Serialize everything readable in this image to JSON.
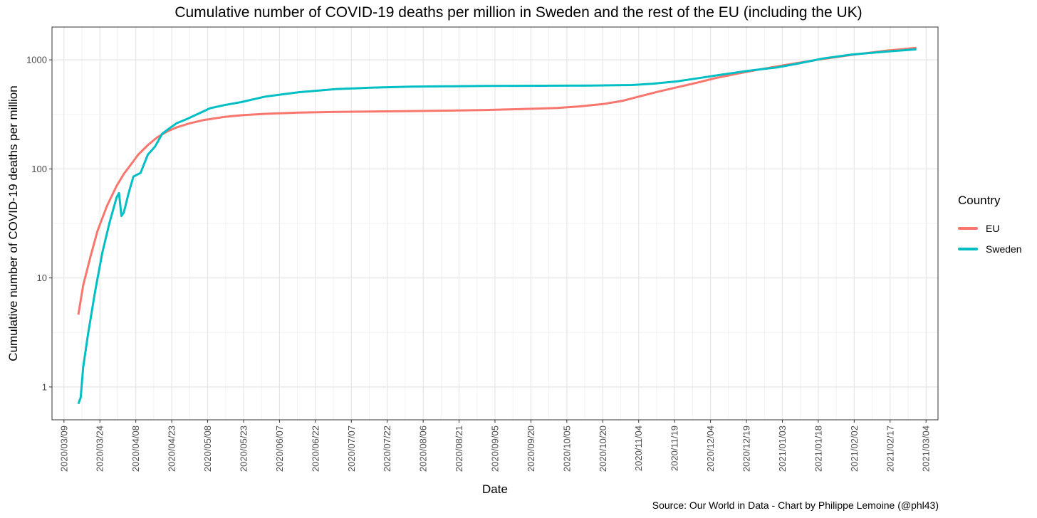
{
  "chart_data": {
    "type": "line",
    "title": "Cumulative number of COVID-19 deaths per million in Sweden and the rest of the EU (including the UK)",
    "xlabel": "Date",
    "ylabel": "Cumulative number of COVID-19 deaths per million",
    "source": "Source: Our World in Data - Chart by Philippe Lemoine (@phl43)",
    "legend_title": "Country",
    "legend_position": "right",
    "grid": true,
    "y_scale": "log10",
    "ylim": [
      0.5,
      2000
    ],
    "xlim": [
      "2020-03-04",
      "2021-03-09"
    ],
    "y_ticks": [
      1,
      10,
      100,
      1000
    ],
    "y_tick_labels": [
      "1",
      "10",
      "100",
      "1000"
    ],
    "x_ticks": [
      "2020-03-09",
      "2020-03-24",
      "2020-04-08",
      "2020-04-23",
      "2020-05-08",
      "2020-05-23",
      "2020-06-07",
      "2020-06-22",
      "2020-07-07",
      "2020-07-22",
      "2020-08-06",
      "2020-08-21",
      "2020-09-05",
      "2020-09-20",
      "2020-10-05",
      "2020-10-20",
      "2020-11-04",
      "2020-11-19",
      "2020-12-04",
      "2020-12-19",
      "2021-01-03",
      "2021-01-18",
      "2021-02-02",
      "2021-02-17",
      "2021-03-04"
    ],
    "x_tick_labels": [
      "2020/03/09",
      "2020/03/24",
      "2020/04/08",
      "2020/04/23",
      "2020/05/08",
      "2020/05/23",
      "2020/06/07",
      "2020/06/22",
      "2020/07/07",
      "2020/07/22",
      "2020/08/06",
      "2020/08/21",
      "2020/09/05",
      "2020/09/20",
      "2020/10/05",
      "2020/10/20",
      "2020/11/04",
      "2020/11/19",
      "2020/12/04",
      "2020/12/19",
      "2021/01/03",
      "2021/01/18",
      "2021/02/02",
      "2021/02/17",
      "2021/03/04"
    ],
    "series": [
      {
        "name": "EU",
        "color": "#F8766D",
        "x": [
          "2020-03-15",
          "2020-03-17",
          "2020-03-20",
          "2020-03-23",
          "2020-03-27",
          "2020-03-31",
          "2020-04-03",
          "2020-04-06",
          "2020-04-09",
          "2020-04-13",
          "2020-04-17",
          "2020-04-21",
          "2020-04-25",
          "2020-04-30",
          "2020-05-06",
          "2020-05-15",
          "2020-05-23",
          "2020-06-01",
          "2020-06-15",
          "2020-07-01",
          "2020-07-15",
          "2020-08-01",
          "2020-08-15",
          "2020-09-01",
          "2020-09-15",
          "2020-10-01",
          "2020-10-10",
          "2020-10-20",
          "2020-10-28",
          "2020-11-04",
          "2020-11-12",
          "2020-11-20",
          "2020-11-28",
          "2020-12-06",
          "2020-12-15",
          "2020-12-25",
          "2021-01-05",
          "2021-01-18",
          "2021-02-01",
          "2021-02-15",
          "2021-02-28"
        ],
        "y": [
          4.6,
          8.5,
          15.5,
          27,
          46,
          70,
          90,
          110,
          135,
          165,
          195,
          220,
          240,
          260,
          280,
          300,
          312,
          320,
          328,
          333,
          336,
          339,
          342,
          347,
          353,
          362,
          374,
          393,
          420,
          460,
          510,
          560,
          615,
          680,
          745,
          820,
          905,
          1005,
          1110,
          1210,
          1290
        ]
      },
      {
        "name": "Sweden",
        "color": "#00BFC4",
        "x": [
          "2020-03-15",
          "2020-03-16",
          "2020-03-17",
          "2020-03-19",
          "2020-03-22",
          "2020-03-25",
          "2020-03-28",
          "2020-03-31",
          "2020-04-01",
          "2020-04-02",
          "2020-04-03",
          "2020-04-05",
          "2020-04-07",
          "2020-04-10",
          "2020-04-13",
          "2020-04-16",
          "2020-04-19",
          "2020-04-22",
          "2020-04-25",
          "2020-04-29",
          "2020-05-04",
          "2020-05-09",
          "2020-05-15",
          "2020-05-22",
          "2020-06-01",
          "2020-06-15",
          "2020-07-01",
          "2020-07-15",
          "2020-08-01",
          "2020-08-15",
          "2020-09-01",
          "2020-09-15",
          "2020-10-01",
          "2020-10-15",
          "2020-11-01",
          "2020-11-10",
          "2020-11-20",
          "2020-12-01",
          "2020-12-10",
          "2020-12-20",
          "2021-01-01",
          "2021-01-10",
          "2021-01-20",
          "2021-02-01",
          "2021-02-15",
          "2021-02-28"
        ],
        "y": [
          0.7,
          0.8,
          1.5,
          3.0,
          7.5,
          17,
          32,
          55,
          60,
          37,
          40,
          60,
          85,
          92,
          135,
          160,
          210,
          235,
          262,
          285,
          320,
          360,
          385,
          410,
          460,
          505,
          540,
          555,
          568,
          572,
          576,
          578,
          580,
          582,
          588,
          605,
          635,
          690,
          740,
          795,
          855,
          930,
          1030,
          1120,
          1190,
          1250
        ]
      }
    ]
  }
}
